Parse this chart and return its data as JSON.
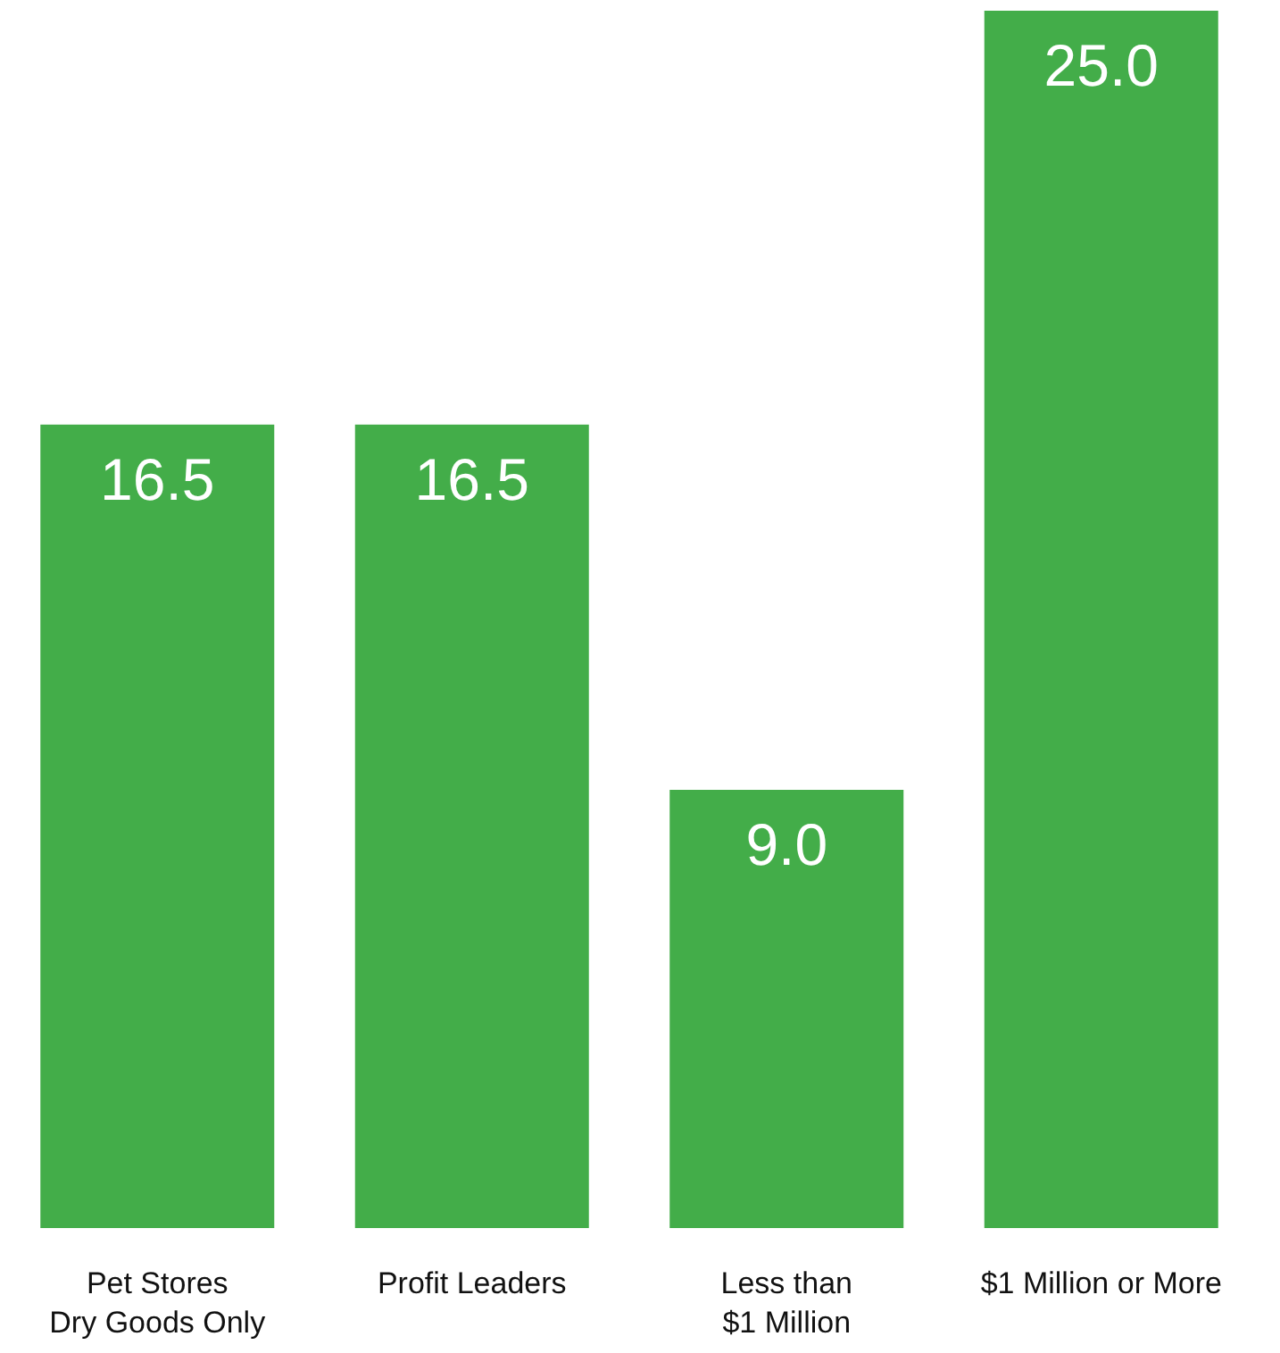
{
  "chart_data": {
    "type": "bar",
    "categories": [
      "Pet Stores\nDry Goods Only",
      "Profit Leaders",
      "Less than\n$1 Million",
      "$1 Million or More"
    ],
    "values": [
      16.5,
      16.5,
      9,
      25
    ],
    "value_labels": [
      "16.5",
      "16.5",
      "9.0",
      "25.0"
    ],
    "color": "#43ad49"
  }
}
